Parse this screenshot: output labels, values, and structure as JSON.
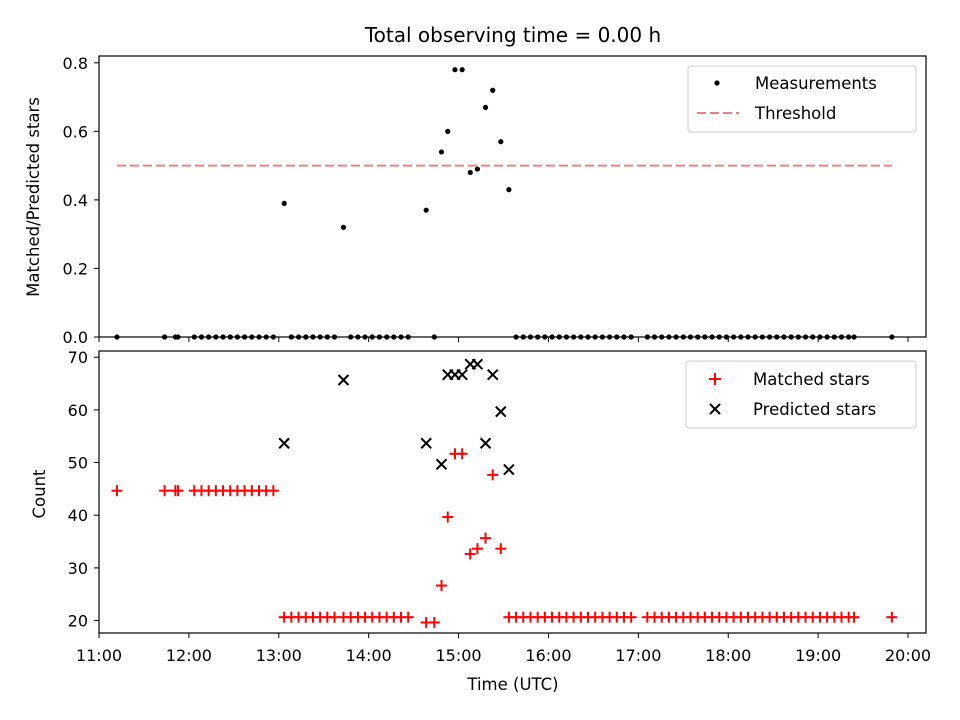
{
  "chart_data": [
    {
      "type": "scatter",
      "title": "Total observing time = 0.00 h",
      "xlabel": "",
      "ylabel": "Matched/Predicted stars",
      "xlim": [
        11.0,
        20.2
      ],
      "ylim": [
        0.0,
        0.82
      ],
      "yticks": [
        "0.0",
        "0.2",
        "0.4",
        "0.6",
        "0.8"
      ],
      "grid": false,
      "legend": "top-right",
      "series": [
        {
          "name": "Measurements",
          "color": "#000000",
          "marker": "dot",
          "points": [
            [
              11.2,
              0
            ],
            [
              11.73,
              0
            ],
            [
              11.85,
              0
            ],
            [
              11.88,
              0
            ],
            [
              12.06,
              0
            ],
            [
              12.14,
              0
            ],
            [
              12.22,
              0
            ],
            [
              12.3,
              0
            ],
            [
              12.38,
              0
            ],
            [
              12.46,
              0
            ],
            [
              12.54,
              0
            ],
            [
              12.62,
              0
            ],
            [
              12.7,
              0
            ],
            [
              12.78,
              0
            ],
            [
              12.86,
              0
            ],
            [
              12.94,
              0
            ],
            [
              13.06,
              0.39
            ],
            [
              13.14,
              0
            ],
            [
              13.22,
              0
            ],
            [
              13.3,
              0
            ],
            [
              13.38,
              0
            ],
            [
              13.46,
              0
            ],
            [
              13.54,
              0
            ],
            [
              13.62,
              0
            ],
            [
              13.72,
              0.32
            ],
            [
              13.8,
              0
            ],
            [
              13.88,
              0
            ],
            [
              13.96,
              0
            ],
            [
              14.04,
              0
            ],
            [
              14.12,
              0
            ],
            [
              14.2,
              0
            ],
            [
              14.28,
              0
            ],
            [
              14.36,
              0
            ],
            [
              14.44,
              0
            ],
            [
              14.64,
              0.37
            ],
            [
              14.73,
              0
            ],
            [
              14.81,
              0.54
            ],
            [
              14.88,
              0.6
            ],
            [
              14.96,
              0.78
            ],
            [
              15.04,
              0.78
            ],
            [
              15.13,
              0.48
            ],
            [
              15.21,
              0.49
            ],
            [
              15.3,
              0.67
            ],
            [
              15.38,
              0.72
            ],
            [
              15.47,
              0.57
            ],
            [
              15.56,
              0.43
            ],
            [
              15.64,
              0
            ],
            [
              15.72,
              0
            ],
            [
              15.8,
              0
            ],
            [
              15.88,
              0
            ],
            [
              15.96,
              0
            ],
            [
              16.04,
              0
            ],
            [
              16.12,
              0
            ],
            [
              16.2,
              0
            ],
            [
              16.28,
              0
            ],
            [
              16.36,
              0
            ],
            [
              16.44,
              0
            ],
            [
              16.52,
              0
            ],
            [
              16.6,
              0
            ],
            [
              16.68,
              0
            ],
            [
              16.76,
              0
            ],
            [
              16.84,
              0
            ],
            [
              16.92,
              0
            ],
            [
              17.1,
              0
            ],
            [
              17.18,
              0
            ],
            [
              17.26,
              0
            ],
            [
              17.34,
              0
            ],
            [
              17.42,
              0
            ],
            [
              17.5,
              0
            ],
            [
              17.58,
              0
            ],
            [
              17.66,
              0
            ],
            [
              17.74,
              0
            ],
            [
              17.82,
              0
            ],
            [
              17.9,
              0
            ],
            [
              17.98,
              0
            ],
            [
              18.06,
              0
            ],
            [
              18.14,
              0
            ],
            [
              18.22,
              0
            ],
            [
              18.3,
              0
            ],
            [
              18.38,
              0
            ],
            [
              18.46,
              0
            ],
            [
              18.54,
              0
            ],
            [
              18.62,
              0
            ],
            [
              18.7,
              0
            ],
            [
              18.78,
              0
            ],
            [
              18.86,
              0
            ],
            [
              18.94,
              0
            ],
            [
              19.02,
              0
            ],
            [
              19.1,
              0
            ],
            [
              19.18,
              0
            ],
            [
              19.26,
              0
            ],
            [
              19.34,
              0
            ],
            [
              19.4,
              0
            ],
            [
              19.82,
              0
            ]
          ]
        },
        {
          "name": "Threshold",
          "color": "#f08080",
          "style": "dashed",
          "points": [
            [
              11.2,
              0.5
            ],
            [
              19.82,
              0.5
            ]
          ]
        }
      ]
    },
    {
      "type": "scatter",
      "title": "",
      "xlabel": "Time (UTC)",
      "ylabel": "Count",
      "xlim": [
        11.0,
        20.2
      ],
      "ylim": [
        18,
        71.5
      ],
      "yticks": [
        "20",
        "30",
        "40",
        "50",
        "60",
        "70"
      ],
      "xticks": [
        "11:00",
        "12:00",
        "13:00",
        "14:00",
        "15:00",
        "16:00",
        "17:00",
        "18:00",
        "19:00",
        "20:00"
      ],
      "grid": false,
      "legend": "top-right",
      "series": [
        {
          "name": "Matched stars",
          "color": "#ff0000",
          "marker": "plus",
          "points": [
            [
              11.2,
              45
            ],
            [
              11.73,
              45
            ],
            [
              11.85,
              45
            ],
            [
              11.88,
              45
            ],
            [
              12.06,
              45
            ],
            [
              12.14,
              45
            ],
            [
              12.22,
              45
            ],
            [
              12.3,
              45
            ],
            [
              12.38,
              45
            ],
            [
              12.46,
              45
            ],
            [
              12.54,
              45
            ],
            [
              12.62,
              45
            ],
            [
              12.7,
              45
            ],
            [
              12.78,
              45
            ],
            [
              12.86,
              45
            ],
            [
              12.94,
              45
            ],
            [
              13.06,
              21
            ],
            [
              13.14,
              21
            ],
            [
              13.22,
              21
            ],
            [
              13.3,
              21
            ],
            [
              13.38,
              21
            ],
            [
              13.46,
              21
            ],
            [
              13.54,
              21
            ],
            [
              13.62,
              21
            ],
            [
              13.72,
              21
            ],
            [
              13.8,
              21
            ],
            [
              13.88,
              21
            ],
            [
              13.96,
              21
            ],
            [
              14.04,
              21
            ],
            [
              14.12,
              21
            ],
            [
              14.2,
              21
            ],
            [
              14.28,
              21
            ],
            [
              14.36,
              21
            ],
            [
              14.44,
              21
            ],
            [
              14.64,
              20
            ],
            [
              14.73,
              20
            ],
            [
              14.81,
              27
            ],
            [
              14.88,
              40
            ],
            [
              14.96,
              52
            ],
            [
              15.04,
              52
            ],
            [
              15.13,
              33
            ],
            [
              15.21,
              34
            ],
            [
              15.3,
              36
            ],
            [
              15.38,
              48
            ],
            [
              15.47,
              34
            ],
            [
              15.56,
              21
            ],
            [
              15.64,
              21
            ],
            [
              15.72,
              21
            ],
            [
              15.8,
              21
            ],
            [
              15.88,
              21
            ],
            [
              15.96,
              21
            ],
            [
              16.04,
              21
            ],
            [
              16.12,
              21
            ],
            [
              16.2,
              21
            ],
            [
              16.28,
              21
            ],
            [
              16.36,
              21
            ],
            [
              16.44,
              21
            ],
            [
              16.52,
              21
            ],
            [
              16.6,
              21
            ],
            [
              16.68,
              21
            ],
            [
              16.76,
              21
            ],
            [
              16.84,
              21
            ],
            [
              16.92,
              21
            ],
            [
              17.1,
              21
            ],
            [
              17.18,
              21
            ],
            [
              17.26,
              21
            ],
            [
              17.34,
              21
            ],
            [
              17.42,
              21
            ],
            [
              17.5,
              21
            ],
            [
              17.58,
              21
            ],
            [
              17.66,
              21
            ],
            [
              17.74,
              21
            ],
            [
              17.82,
              21
            ],
            [
              17.9,
              21
            ],
            [
              17.98,
              21
            ],
            [
              18.06,
              21
            ],
            [
              18.14,
              21
            ],
            [
              18.22,
              21
            ],
            [
              18.3,
              21
            ],
            [
              18.38,
              21
            ],
            [
              18.46,
              21
            ],
            [
              18.54,
              21
            ],
            [
              18.62,
              21
            ],
            [
              18.7,
              21
            ],
            [
              18.78,
              21
            ],
            [
              18.86,
              21
            ],
            [
              18.94,
              21
            ],
            [
              19.02,
              21
            ],
            [
              19.1,
              21
            ],
            [
              19.18,
              21
            ],
            [
              19.26,
              21
            ],
            [
              19.34,
              21
            ],
            [
              19.4,
              21
            ],
            [
              19.82,
              21
            ]
          ]
        },
        {
          "name": "Predicted stars",
          "color": "#000000",
          "marker": "x",
          "points": [
            [
              13.06,
              54
            ],
            [
              13.72,
              66
            ],
            [
              14.64,
              54
            ],
            [
              14.81,
              50
            ],
            [
              14.88,
              67
            ],
            [
              14.96,
              67
            ],
            [
              15.04,
              67
            ],
            [
              15.13,
              69
            ],
            [
              15.21,
              69
            ],
            [
              15.3,
              54
            ],
            [
              15.38,
              67
            ],
            [
              15.47,
              60
            ],
            [
              15.56,
              49
            ]
          ]
        }
      ]
    }
  ]
}
